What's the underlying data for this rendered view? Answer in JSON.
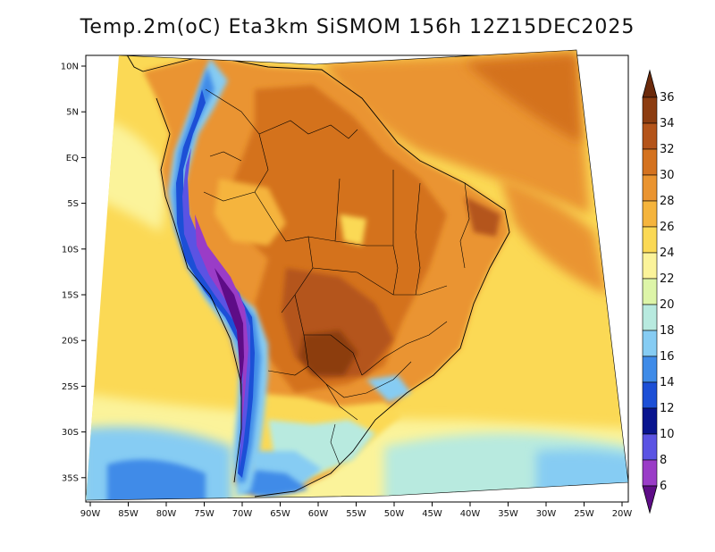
{
  "title": "Temp.2m(oC) Eta3km SiSMOM 156h 12Z15DEC2025",
  "lat_labels": [
    "10N",
    "5N",
    "EQ",
    "5S",
    "10S",
    "15S",
    "20S",
    "25S",
    "30S",
    "35S"
  ],
  "lon_labels": [
    "90W",
    "85W",
    "80W",
    "75W",
    "70W",
    "65W",
    "60W",
    "55W",
    "50W",
    "45W",
    "40W",
    "35W",
    "30W",
    "25W",
    "20W"
  ],
  "colorbar": {
    "labels": [
      "36",
      "34",
      "32",
      "30",
      "28",
      "26",
      "24",
      "22",
      "20",
      "18",
      "16",
      "14",
      "12",
      "10",
      "8",
      "6"
    ],
    "colors": [
      "#6b2a0b",
      "#8c3c10",
      "#b4541a",
      "#d4721f",
      "#ea9430",
      "#f5b43c",
      "#fbd955",
      "#fbf39a",
      "#ddf5a8",
      "#b8eadf",
      "#86ccf3",
      "#3f8be8",
      "#1c4fd6",
      "#09148f",
      "#5b53e3",
      "#9a3cc7",
      "#5e0c87"
    ]
  },
  "icons": {
    "colorbar_top": "triangle-up",
    "colorbar_bottom": "triangle-down"
  }
}
